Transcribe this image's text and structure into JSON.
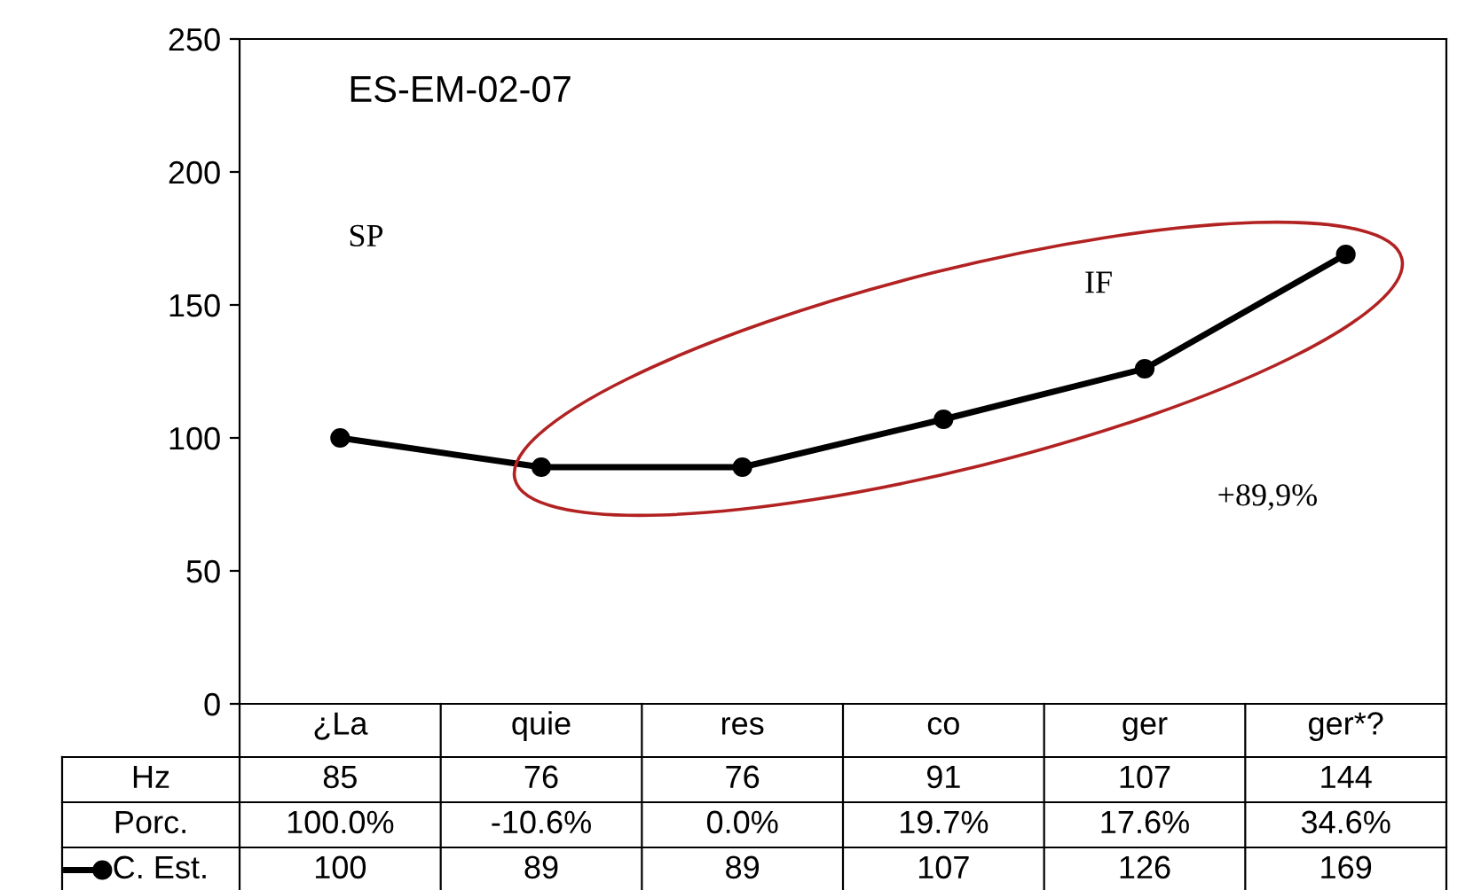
{
  "chart_data": {
    "type": "line",
    "categories": [
      "¿La",
      "quie",
      "res",
      "co",
      "ger",
      "ger*?"
    ],
    "series": [
      {
        "name": "Hz",
        "values": [
          null,
          null,
          null,
          null,
          null,
          null
        ],
        "value_labels": [
          "85",
          "76",
          "76",
          "91",
          "107",
          "144"
        ]
      },
      {
        "name": "Porc.",
        "values": [
          null,
          null,
          null,
          null,
          null,
          null
        ],
        "value_labels": [
          "100.0%",
          "-10.6%",
          "0.0%",
          "19.7%",
          "17.6%",
          "34.6%"
        ]
      },
      {
        "name": "C. Est.",
        "color": "#000000",
        "values": [
          100,
          89,
          89,
          107,
          126,
          169
        ],
        "value_labels": [
          "100",
          "89",
          "89",
          "107",
          "126",
          "169"
        ]
      }
    ],
    "ylim": [
      0,
      250
    ],
    "yticks": [
      0,
      50,
      100,
      150,
      200,
      250
    ],
    "marker": "circle",
    "line_style": "solid",
    "grid": false,
    "legend": "bottom left",
    "annotations": [
      "ES-EM-02-07",
      "SP",
      "IF",
      "+89,9%"
    ]
  }
}
